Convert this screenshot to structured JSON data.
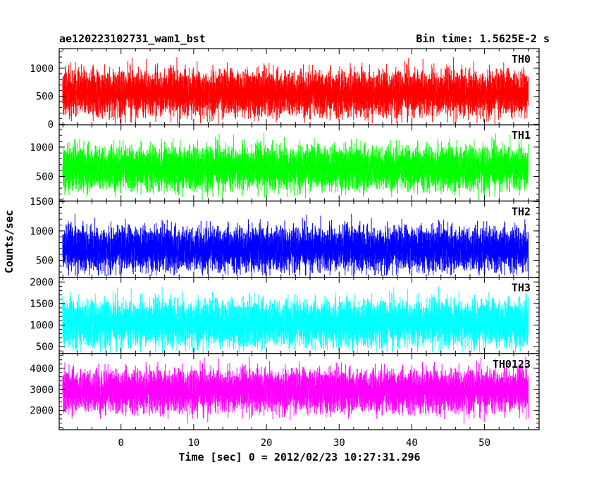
{
  "chart_data": {
    "type": "line",
    "title": "ae120223102731_wam1_bst",
    "subtitle": "Bin time: 1.5625E-2 s",
    "xlabel": "Time [sec] 0 = 2012/02/23 10:27:31.296",
    "ylabel": "Counts/sec",
    "xlim": [
      -8.5,
      57.5
    ],
    "data_x_range": [
      -8,
      56
    ],
    "x_ticks": [
      0,
      10,
      20,
      30,
      40,
      50
    ],
    "panels": [
      {
        "name": "TH0",
        "color": "#ff0000",
        "ylim": [
          -10,
          1350
        ],
        "y_ticks": [
          0,
          500,
          1000
        ],
        "base": 560,
        "spread": 280,
        "min": 0,
        "max": 1340
      },
      {
        "name": "TH1",
        "color": "#00ff00",
        "ylim": [
          80,
          1380
        ],
        "y_ticks": [
          500,
          1000
        ],
        "base": 650,
        "spread": 260,
        "min": 90,
        "max": 1370
      },
      {
        "name": "TH2",
        "color": "#0000ff",
        "ylim": [
          210,
          1510
        ],
        "y_ticks": [
          500,
          1000,
          1500
        ],
        "base": 700,
        "spread": 260,
        "min": 240,
        "max": 1500
      },
      {
        "name": "TH3",
        "color": "#00ffff",
        "ylim": [
          340,
          2110
        ],
        "y_ticks": [
          500,
          1000,
          1500,
          2000
        ],
        "base": 1050,
        "spread": 370,
        "min": 360,
        "max": 2100
      },
      {
        "name": "TH0123",
        "color": "#ff00ff",
        "ylim": [
          1090,
          4700
        ],
        "y_ticks": [
          2000,
          3000,
          4000
        ],
        "base": 2950,
        "spread": 700,
        "min": 1100,
        "max": 4650
      }
    ]
  }
}
